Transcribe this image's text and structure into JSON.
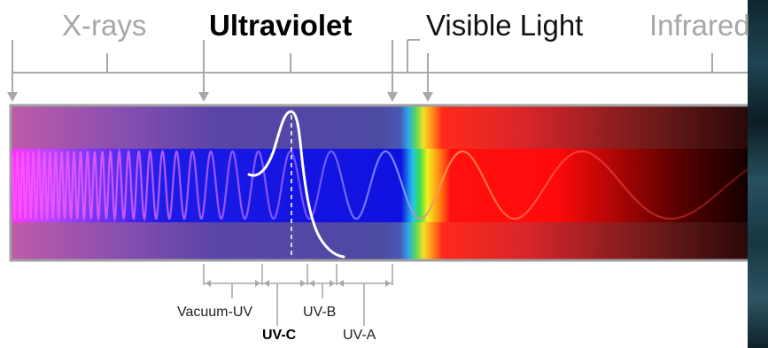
{
  "bands": [
    {
      "label": "X-rays",
      "style": "light"
    },
    {
      "label": "Ultraviolet",
      "style": "bold"
    },
    {
      "label": "Visible Light",
      "style": "dark"
    },
    {
      "label": "Infrared",
      "style": "light"
    }
  ],
  "uv_subbands": {
    "vacuum_uv": "Vacuum-UV",
    "uv_c": "UV-C",
    "uv_b": "UV-B",
    "uv_a": "UV-A"
  },
  "colors": {
    "bracket": "#a8a8a8",
    "uv_band": "#5a44a8",
    "wave_band_blue": "#1010e0",
    "visible_red": "#ff1a1a",
    "infrared_dark": "#000000",
    "wave_stroke": "#b070ff",
    "emission_curve": "#ffffff",
    "outline": "#9a9a9a"
  },
  "icons": [
    "arrow-down-icon",
    "arrow-left-right-icon"
  ]
}
